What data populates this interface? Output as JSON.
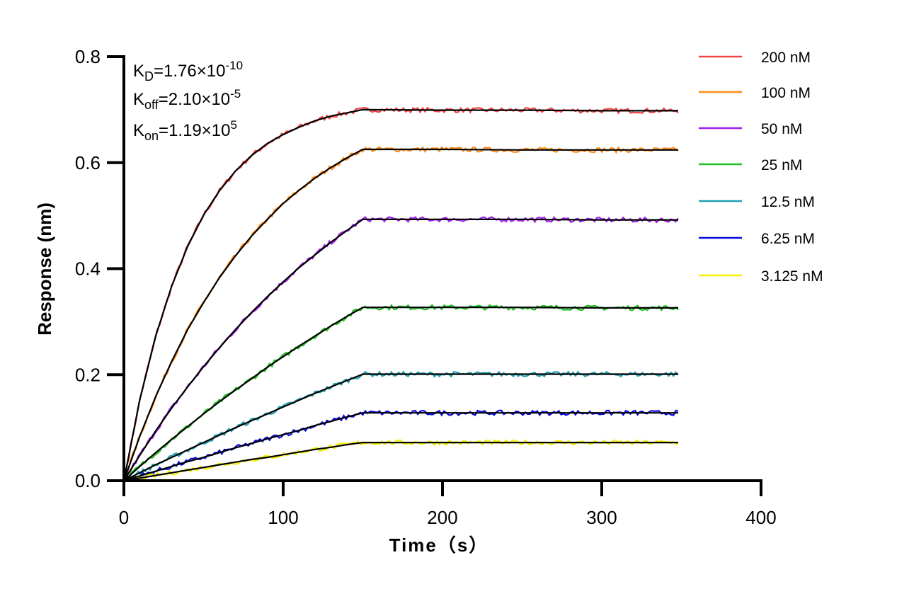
{
  "chart_data": {
    "type": "line",
    "xlabel": "Time（s）",
    "ylabel": "Response (nm)",
    "xlim": [
      0,
      400
    ],
    "ylim": [
      0,
      0.8
    ],
    "xticks": [
      "0",
      "100",
      "200",
      "300",
      "400"
    ],
    "yticks": [
      "0.0",
      "0.2",
      "0.4",
      "0.6",
      "0.8"
    ],
    "grid": false,
    "legend_position": "top-right",
    "annotations": [
      {
        "base": "K",
        "sub": "D",
        "mid": "=1.76×10",
        "sup": "-10"
      },
      {
        "base": "K",
        "sub": "off",
        "mid": "=2.10×10",
        "sup": "-5"
      },
      {
        "base": "K",
        "sub": "on",
        "mid": "=1.19×10",
        "sup": "5"
      }
    ],
    "fit_color": "#000000",
    "x": [
      0,
      10,
      20,
      30,
      40,
      50,
      60,
      70,
      80,
      90,
      100,
      110,
      120,
      130,
      140,
      150,
      200,
      250,
      300,
      348
    ],
    "series": [
      {
        "name": "200 nM",
        "color": "#f04848",
        "values": [
          0,
          0.153,
          0.273,
          0.367,
          0.442,
          0.501,
          0.547,
          0.584,
          0.613,
          0.636,
          0.653,
          0.667,
          0.679,
          0.688,
          0.694,
          0.7,
          0.699,
          0.699,
          0.698,
          0.698
        ]
      },
      {
        "name": "100 nM",
        "color": "#ff8c1a",
        "values": [
          0,
          0.084,
          0.159,
          0.225,
          0.285,
          0.336,
          0.383,
          0.424,
          0.461,
          0.493,
          0.523,
          0.548,
          0.571,
          0.591,
          0.609,
          0.625,
          0.625,
          0.624,
          0.624,
          0.624
        ]
      },
      {
        "name": "50 nM",
        "color": "#a020e8",
        "values": [
          0,
          0.048,
          0.094,
          0.137,
          0.177,
          0.215,
          0.251,
          0.285,
          0.317,
          0.347,
          0.375,
          0.402,
          0.426,
          0.45,
          0.472,
          0.493,
          0.493,
          0.493,
          0.492,
          0.492
        ]
      },
      {
        "name": "25 nM",
        "color": "#22c022",
        "values": [
          0,
          0.027,
          0.053,
          0.078,
          0.102,
          0.126,
          0.149,
          0.171,
          0.192,
          0.214,
          0.234,
          0.254,
          0.273,
          0.292,
          0.31,
          0.327,
          0.327,
          0.327,
          0.326,
          0.326
        ]
      },
      {
        "name": "12.5 nM",
        "color": "#1fa0b0",
        "values": [
          0,
          0.015,
          0.03,
          0.044,
          0.058,
          0.072,
          0.086,
          0.1,
          0.113,
          0.126,
          0.139,
          0.152,
          0.165,
          0.177,
          0.189,
          0.201,
          0.201,
          0.201,
          0.201,
          0.201
        ]
      },
      {
        "name": "6.25 nM",
        "color": "#0a0ae0",
        "values": [
          0,
          0.009,
          0.018,
          0.027,
          0.036,
          0.044,
          0.053,
          0.062,
          0.07,
          0.079,
          0.087,
          0.095,
          0.104,
          0.112,
          0.12,
          0.128,
          0.128,
          0.128,
          0.128,
          0.128
        ]
      },
      {
        "name": "3.125 nM",
        "color": "#f5f000",
        "values": [
          0,
          0.005,
          0.01,
          0.015,
          0.02,
          0.025,
          0.03,
          0.035,
          0.04,
          0.044,
          0.049,
          0.054,
          0.059,
          0.063,
          0.068,
          0.072,
          0.072,
          0.072,
          0.072,
          0.072
        ]
      }
    ]
  }
}
